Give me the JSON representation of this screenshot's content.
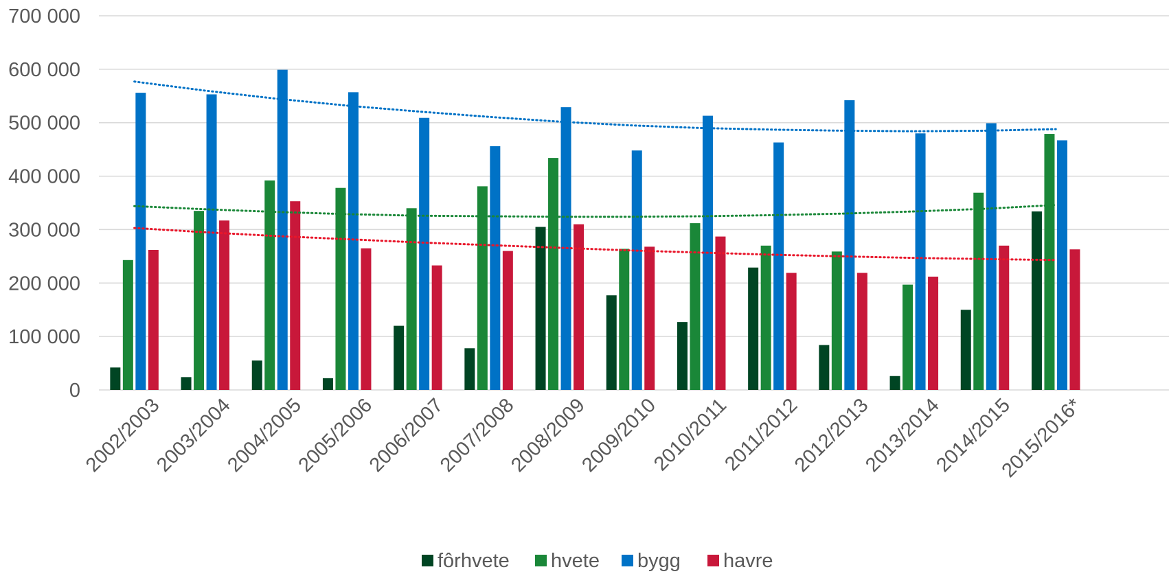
{
  "chart_data": {
    "type": "bar",
    "title": "",
    "xlabel": "",
    "ylabel": "",
    "categories": [
      "2002/2003",
      "2003/2004",
      "2004/2005",
      "2005/2006",
      "2006/2007",
      "2007/2008",
      "2008/2009",
      "2009/2010",
      "2010/2011",
      "2011/2012",
      "2012/2013",
      "2013/2014",
      "2014/2015",
      "2015/2016*"
    ],
    "ylim": [
      0,
      700000
    ],
    "yticks": [
      0,
      100000,
      200000,
      300000,
      400000,
      500000,
      600000,
      700000
    ],
    "ytick_labels": [
      "0",
      "100 000",
      "200 000",
      "300 000",
      "400 000",
      "500 000",
      "600 000",
      "700 000"
    ],
    "grid": true,
    "legend_position": "bottom",
    "series": [
      {
        "name": "fôrhvete",
        "color": "#004523",
        "values": [
          42000,
          24000,
          55000,
          22000,
          120000,
          78000,
          305000,
          177000,
          127000,
          229000,
          84000,
          26000,
          150000,
          334000
        ]
      },
      {
        "name": "hvete",
        "color": "#1a8738",
        "values": [
          243000,
          335000,
          392000,
          378000,
          340000,
          381000,
          434000,
          264000,
          312000,
          270000,
          259000,
          197000,
          369000,
          479000
        ]
      },
      {
        "name": "bygg",
        "color": "#0072c6",
        "values": [
          556000,
          553000,
          599000,
          557000,
          509000,
          456000,
          529000,
          448000,
          513000,
          463000,
          542000,
          480000,
          499000,
          467000
        ]
      },
      {
        "name": "havre",
        "color": "#c8183a",
        "values": [
          262000,
          317000,
          353000,
          265000,
          233000,
          260000,
          310000,
          268000,
          287000,
          219000,
          219000,
          212000,
          270000,
          263000
        ]
      }
    ],
    "trendlines": [
      {
        "series": "hvete",
        "type": "polynomial",
        "style": "dotted",
        "color": "#1a8738",
        "values": [
          344000,
          338000,
          333000,
          329000,
          326000,
          325000,
          324000,
          324000,
          325000,
          327000,
          330000,
          334000,
          339000,
          346000
        ]
      },
      {
        "series": "bygg",
        "type": "polynomial",
        "style": "dotted",
        "color": "#0072c6",
        "values": [
          577000,
          560000,
          545000,
          532000,
          521000,
          511000,
          502000,
          495000,
          490000,
          487000,
          485000,
          484000,
          485000,
          488000
        ]
      },
      {
        "series": "havre",
        "type": "polynomial",
        "style": "dotted",
        "color": "#e8162a",
        "values": [
          303000,
          295000,
          288000,
          282000,
          276000,
          271000,
          266000,
          261000,
          257000,
          253000,
          250000,
          247000,
          245000,
          243000
        ]
      }
    ]
  }
}
